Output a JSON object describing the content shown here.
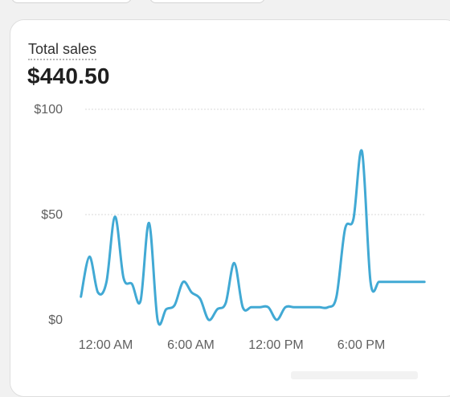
{
  "metric": {
    "label": "Total sales",
    "value": "$440.50"
  },
  "colors": {
    "line": "#41a9d4",
    "grid": "#d9d9d9"
  },
  "chart_data": {
    "type": "line",
    "title": "",
    "xlabel": "",
    "ylabel": "",
    "ylim": [
      0,
      100
    ],
    "y_ticks": [
      "$0",
      "$50",
      "$100"
    ],
    "y_tick_values": [
      0,
      50,
      100
    ],
    "x_ticks": [
      "12:00 AM",
      "6:00 AM",
      "12:00 PM",
      "6:00 PM"
    ],
    "x_tick_hours": [
      0,
      6,
      12,
      18
    ],
    "grid": true,
    "series": [
      {
        "x": [
          -1.8,
          -1.2,
          -0.6,
          0,
          0.6,
          1.2,
          1.8,
          2.4,
          3.0,
          3.6,
          4.2,
          4.8,
          5.4,
          6.0,
          6.6,
          7.2,
          7.8,
          8.4,
          9.0,
          9.6,
          10.2,
          10.8,
          11.4,
          12.0,
          12.6,
          13.2,
          13.8,
          14.4,
          15.0,
          15.6,
          16.2,
          16.8,
          17.4,
          18.0,
          18.6,
          19.2,
          19.8,
          20.4,
          21.0,
          21.6,
          22.0,
          22.4
        ],
        "values": [
          11,
          30,
          13,
          18,
          49,
          20,
          17,
          9,
          46,
          0,
          5,
          7,
          18,
          13,
          10,
          0,
          5,
          8,
          27,
          6,
          6,
          6,
          6,
          0,
          6,
          6,
          6,
          6,
          6,
          6,
          11,
          43,
          48,
          80,
          18,
          18,
          18,
          18,
          18,
          18,
          18,
          18
        ]
      }
    ]
  }
}
